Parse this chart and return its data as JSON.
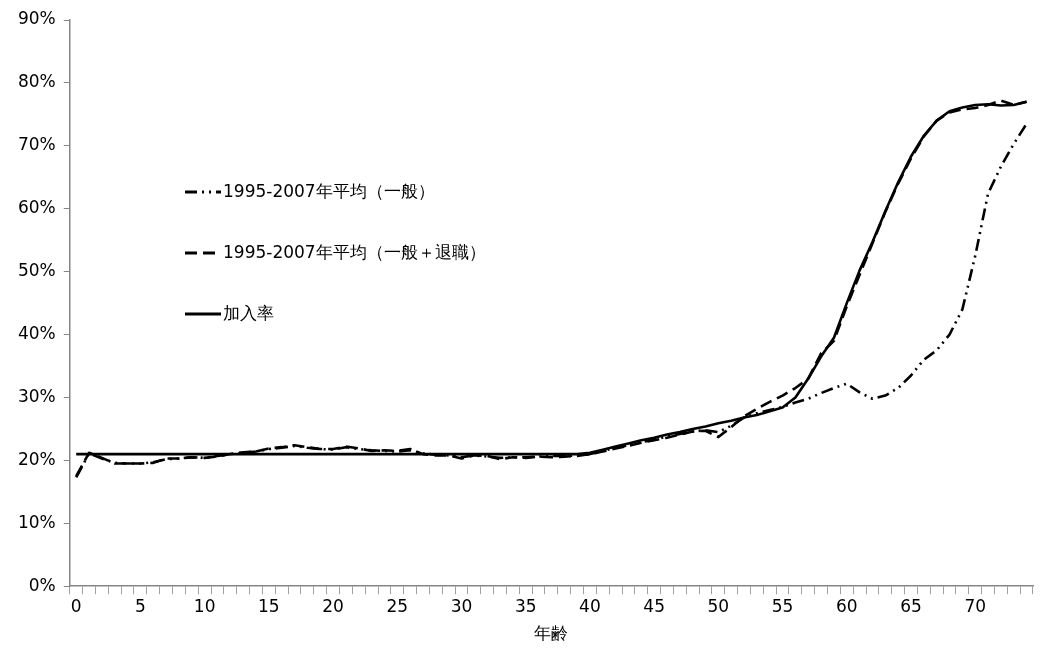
{
  "chart_data": {
    "type": "line",
    "xlabel": "年齢",
    "categories": [
      "0",
      null,
      null,
      null,
      null,
      "5",
      null,
      null,
      null,
      null,
      "10",
      null,
      null,
      null,
      null,
      "15",
      null,
      null,
      null,
      null,
      "20",
      null,
      null,
      null,
      null,
      "25",
      null,
      null,
      null,
      null,
      "30",
      null,
      null,
      null,
      null,
      "35",
      null,
      null,
      null,
      null,
      "40",
      null,
      null,
      null,
      null,
      "45",
      null,
      null,
      null,
      null,
      "50",
      null,
      null,
      null,
      null,
      "55",
      null,
      null,
      null,
      null,
      "60",
      null,
      null,
      null,
      null,
      "65",
      null,
      null,
      null,
      null,
      "70",
      null,
      null,
      null,
      null
    ],
    "ylim": [
      0,
      90
    ],
    "yticks": [
      {
        "value": 0,
        "label": "0%"
      },
      {
        "value": 10,
        "label": "10%"
      },
      {
        "value": 20,
        "label": "20%"
      },
      {
        "value": 30,
        "label": "30%"
      },
      {
        "value": 40,
        "label": "40%"
      },
      {
        "value": 50,
        "label": "50%"
      },
      {
        "value": 60,
        "label": "60%"
      },
      {
        "value": 70,
        "label": "70%"
      },
      {
        "value": 80,
        "label": "80%"
      },
      {
        "value": 90,
        "label": "90%"
      }
    ],
    "grid": false,
    "legend": "left",
    "marker": "none",
    "series": [
      {
        "name": "1995-2007年平均（一般）",
        "color": "#000000",
        "line_style": "dashdot",
        "values": [
          17.3,
          21.1,
          20.3,
          19.6,
          19.5,
          19.5,
          19.7,
          20.2,
          20.3,
          20.5,
          20.4,
          20.7,
          21.0,
          21.2,
          21.4,
          21.8,
          22.0,
          22.3,
          22.0,
          21.8,
          21.7,
          22.1,
          21.8,
          21.6,
          21.5,
          21.4,
          21.6,
          21.1,
          20.9,
          20.8,
          20.5,
          20.8,
          20.6,
          20.4,
          20.5,
          20.5,
          20.6,
          20.7,
          20.7,
          20.8,
          21.0,
          21.5,
          22.0,
          22.4,
          22.9,
          23.3,
          23.8,
          24.2,
          24.6,
          24.8,
          24.5,
          25.5,
          26.8,
          27.5,
          28.0,
          28.5,
          29.2,
          29.8,
          30.7,
          31.5,
          32.2,
          30.8,
          29.8,
          30.3,
          31.5,
          33.5,
          36.0,
          37.5,
          40.0,
          44.0,
          52.5,
          62.4,
          66.7,
          70.3,
          73.5
        ]
      },
      {
        "name": "1995-2007年平均（一般＋退職）",
        "color": "#000000",
        "line_style": "dashed",
        "values": [
          17.5,
          21.2,
          20.4,
          19.5,
          19.5,
          19.5,
          19.6,
          20.3,
          20.3,
          20.5,
          20.4,
          20.6,
          21.0,
          21.3,
          21.4,
          21.9,
          22.1,
          22.4,
          22.1,
          21.8,
          21.8,
          22.2,
          21.9,
          21.5,
          21.6,
          21.5,
          21.8,
          21.0,
          20.8,
          20.8,
          20.3,
          20.8,
          20.7,
          20.2,
          20.5,
          20.4,
          20.6,
          20.5,
          20.6,
          20.7,
          21.0,
          21.4,
          21.9,
          22.3,
          22.8,
          23.2,
          23.6,
          24.1,
          24.6,
          24.7,
          23.7,
          25.3,
          27.0,
          28.2,
          29.3,
          30.3,
          31.5,
          33.0,
          37.0,
          39.0,
          44.5,
          49.5,
          54.5,
          59.5,
          64.0,
          68.0,
          71.5,
          74.0,
          75.3,
          75.8,
          76.0,
          76.5,
          77.2,
          76.5,
          77.0
        ]
      },
      {
        "name": "加入率",
        "color": "#000000",
        "line_style": "solid",
        "values": [
          21,
          21,
          21,
          21,
          21,
          21,
          21,
          21,
          21,
          21,
          21,
          21,
          21,
          21,
          21,
          21,
          21,
          21,
          21,
          21,
          21,
          21,
          21,
          21,
          21,
          21,
          21,
          21,
          21,
          21,
          21,
          21,
          21,
          21,
          21,
          21,
          21,
          21,
          21,
          21,
          21.2,
          21.7,
          22.2,
          22.7,
          23.2,
          23.6,
          24.1,
          24.5,
          25.0,
          25.4,
          25.9,
          26.3,
          26.8,
          27.2,
          27.8,
          28.4,
          30.0,
          33.0,
          36.5,
          39.5,
          45.0,
          50.2,
          54.7,
          59.6,
          64.2,
          68.3,
          71.6,
          74.0,
          75.5,
          76.1,
          76.5,
          76.6,
          76.4,
          76.5,
          77.0
        ]
      }
    ]
  }
}
